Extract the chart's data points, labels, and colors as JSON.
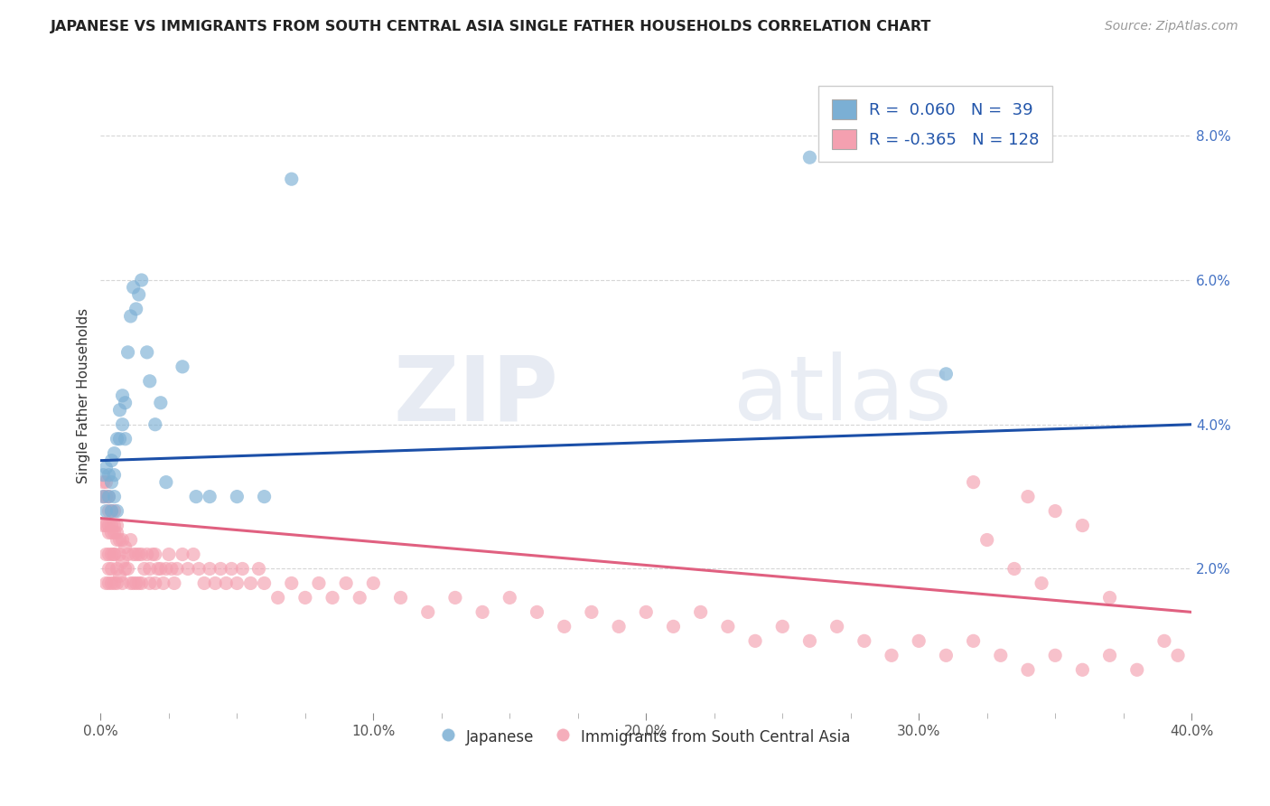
{
  "title": "JAPANESE VS IMMIGRANTS FROM SOUTH CENTRAL ASIA SINGLE FATHER HOUSEHOLDS CORRELATION CHART",
  "source_text": "Source: ZipAtlas.com",
  "ylabel": "Single Father Households",
  "xlabel": "",
  "xlim": [
    0.0,
    0.4
  ],
  "ylim": [
    0.0,
    0.088
  ],
  "xtick_labels": [
    "0.0%",
    "10.0%",
    "20.0%",
    "30.0%",
    "40.0%"
  ],
  "xtick_vals": [
    0.0,
    0.1,
    0.2,
    0.3,
    0.4
  ],
  "ytick_labels_right": [
    "2.0%",
    "4.0%",
    "6.0%",
    "8.0%"
  ],
  "ytick_vals_right": [
    0.02,
    0.04,
    0.06,
    0.08
  ],
  "watermark_zip": "ZIP",
  "watermark_atlas": "atlas",
  "blue_R": 0.06,
  "blue_N": 39,
  "pink_R": -0.365,
  "pink_N": 128,
  "blue_color": "#7BAFD4",
  "pink_color": "#F4A0B0",
  "blue_line_color": "#1B4FA8",
  "pink_line_color": "#E06080",
  "legend_label_blue": "Japanese",
  "legend_label_pink": "Immigrants from South Central Asia",
  "blue_line_x0": 0.0,
  "blue_line_y0": 0.035,
  "blue_line_x1": 0.4,
  "blue_line_y1": 0.04,
  "pink_line_x0": 0.0,
  "pink_line_y0": 0.027,
  "pink_line_x1": 0.4,
  "pink_line_y1": 0.014,
  "blue_scatter_x": [
    0.001,
    0.001,
    0.002,
    0.002,
    0.003,
    0.003,
    0.004,
    0.004,
    0.004,
    0.005,
    0.005,
    0.005,
    0.006,
    0.006,
    0.007,
    0.007,
    0.008,
    0.008,
    0.009,
    0.009,
    0.01,
    0.011,
    0.012,
    0.013,
    0.014,
    0.015,
    0.017,
    0.018,
    0.02,
    0.022,
    0.024,
    0.03,
    0.035,
    0.04,
    0.05,
    0.06,
    0.07,
    0.26,
    0.31
  ],
  "blue_scatter_y": [
    0.033,
    0.03,
    0.034,
    0.028,
    0.033,
    0.03,
    0.035,
    0.032,
    0.028,
    0.036,
    0.033,
    0.03,
    0.038,
    0.028,
    0.042,
    0.038,
    0.044,
    0.04,
    0.043,
    0.038,
    0.05,
    0.055,
    0.059,
    0.056,
    0.058,
    0.06,
    0.05,
    0.046,
    0.04,
    0.043,
    0.032,
    0.048,
    0.03,
    0.03,
    0.03,
    0.03,
    0.074,
    0.077,
    0.047
  ],
  "pink_scatter_x": [
    0.001,
    0.001,
    0.001,
    0.002,
    0.002,
    0.002,
    0.002,
    0.002,
    0.003,
    0.003,
    0.003,
    0.003,
    0.003,
    0.003,
    0.003,
    0.004,
    0.004,
    0.004,
    0.004,
    0.004,
    0.004,
    0.005,
    0.005,
    0.005,
    0.005,
    0.005,
    0.005,
    0.006,
    0.006,
    0.006,
    0.006,
    0.006,
    0.007,
    0.007,
    0.007,
    0.008,
    0.008,
    0.008,
    0.009,
    0.009,
    0.01,
    0.01,
    0.011,
    0.011,
    0.012,
    0.012,
    0.013,
    0.013,
    0.014,
    0.014,
    0.015,
    0.015,
    0.016,
    0.017,
    0.018,
    0.018,
    0.019,
    0.02,
    0.02,
    0.021,
    0.022,
    0.023,
    0.024,
    0.025,
    0.026,
    0.027,
    0.028,
    0.03,
    0.032,
    0.034,
    0.036,
    0.038,
    0.04,
    0.042,
    0.044,
    0.046,
    0.048,
    0.05,
    0.052,
    0.055,
    0.058,
    0.06,
    0.065,
    0.07,
    0.075,
    0.08,
    0.085,
    0.09,
    0.095,
    0.1,
    0.11,
    0.12,
    0.13,
    0.14,
    0.15,
    0.16,
    0.17,
    0.18,
    0.19,
    0.2,
    0.21,
    0.22,
    0.23,
    0.24,
    0.25,
    0.26,
    0.27,
    0.28,
    0.29,
    0.3,
    0.31,
    0.32,
    0.33,
    0.34,
    0.35,
    0.36,
    0.37,
    0.38,
    0.39,
    0.395,
    0.34,
    0.35,
    0.36,
    0.37,
    0.32,
    0.325,
    0.335,
    0.345
  ],
  "pink_scatter_y": [
    0.03,
    0.032,
    0.026,
    0.03,
    0.032,
    0.026,
    0.022,
    0.018,
    0.03,
    0.028,
    0.026,
    0.022,
    0.018,
    0.025,
    0.02,
    0.028,
    0.026,
    0.022,
    0.018,
    0.025,
    0.02,
    0.028,
    0.026,
    0.022,
    0.025,
    0.018,
    0.022,
    0.026,
    0.024,
    0.02,
    0.025,
    0.018,
    0.024,
    0.022,
    0.019,
    0.024,
    0.021,
    0.018,
    0.023,
    0.02,
    0.022,
    0.02,
    0.024,
    0.018,
    0.022,
    0.018,
    0.022,
    0.018,
    0.022,
    0.018,
    0.022,
    0.018,
    0.02,
    0.022,
    0.02,
    0.018,
    0.022,
    0.022,
    0.018,
    0.02,
    0.02,
    0.018,
    0.02,
    0.022,
    0.02,
    0.018,
    0.02,
    0.022,
    0.02,
    0.022,
    0.02,
    0.018,
    0.02,
    0.018,
    0.02,
    0.018,
    0.02,
    0.018,
    0.02,
    0.018,
    0.02,
    0.018,
    0.016,
    0.018,
    0.016,
    0.018,
    0.016,
    0.018,
    0.016,
    0.018,
    0.016,
    0.014,
    0.016,
    0.014,
    0.016,
    0.014,
    0.012,
    0.014,
    0.012,
    0.014,
    0.012,
    0.014,
    0.012,
    0.01,
    0.012,
    0.01,
    0.012,
    0.01,
    0.008,
    0.01,
    0.008,
    0.01,
    0.008,
    0.006,
    0.008,
    0.006,
    0.008,
    0.006,
    0.01,
    0.008,
    0.03,
    0.028,
    0.026,
    0.016,
    0.032,
    0.024,
    0.02,
    0.018
  ]
}
